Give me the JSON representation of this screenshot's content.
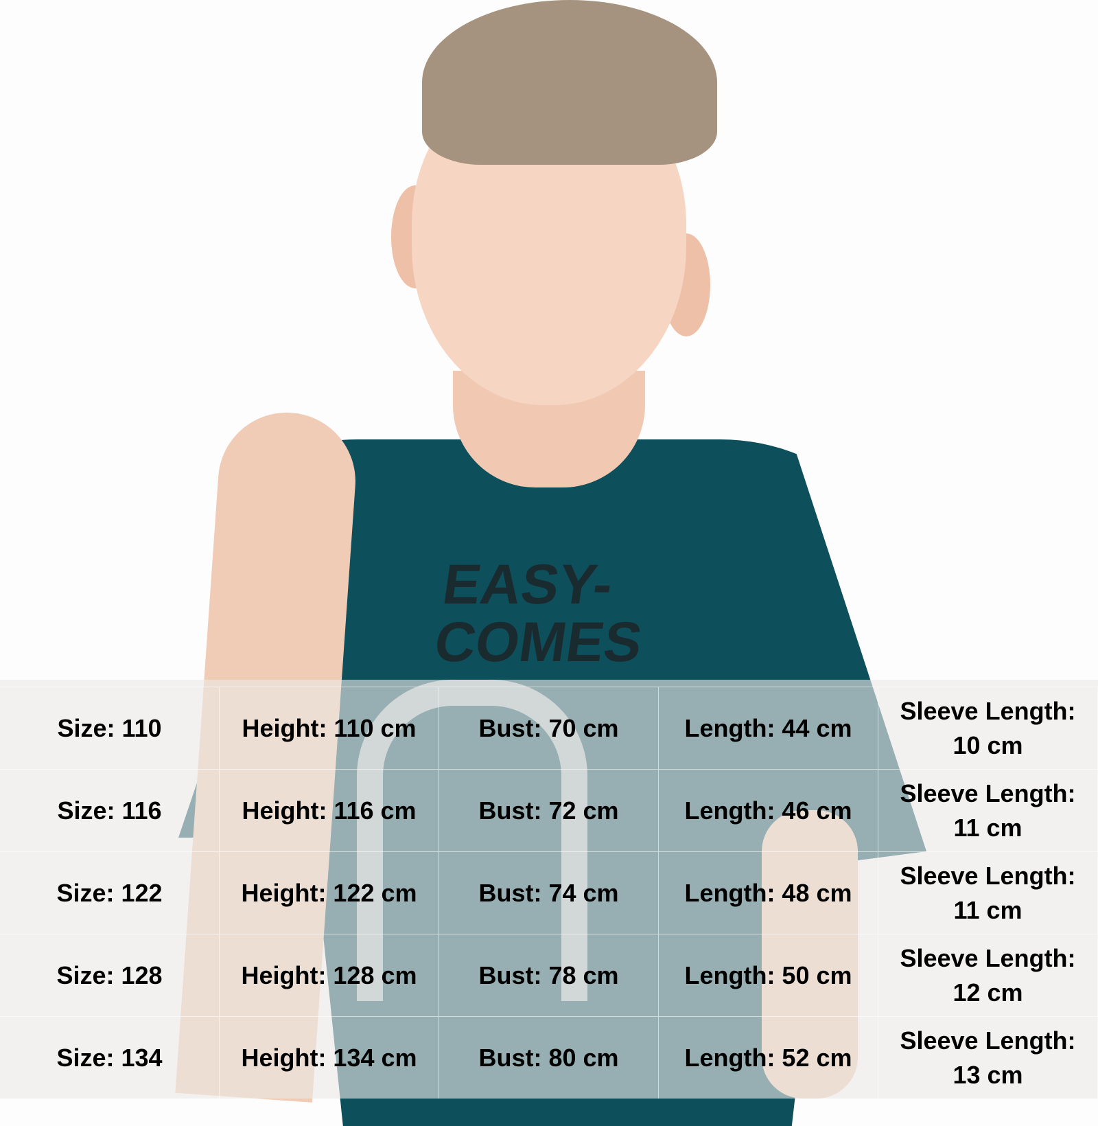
{
  "photo": {
    "shirt_print": [
      "EASY-",
      "COMES"
    ],
    "shirt_color": "#0e4f5c"
  },
  "size_table": {
    "rows": [
      [
        "Size: 110",
        "Height: 110 cm",
        "Bust: 70 cm",
        "Length: 44 cm",
        "Sleeve Length: 10 cm"
      ],
      [
        "Size: 116",
        "Height: 116 cm",
        "Bust: 72 cm",
        "Length: 46 cm",
        "Sleeve Length: 11 cm"
      ],
      [
        "Size: 122",
        "Height: 122 cm",
        "Bust: 74 cm",
        "Length: 48 cm",
        "Sleeve Length: 11 cm"
      ],
      [
        "Size: 128",
        "Height: 128 cm",
        "Bust: 78 cm",
        "Length: 50 cm",
        "Sleeve Length: 12 cm"
      ],
      [
        "Size: 134",
        "Height: 134 cm",
        "Bust: 80 cm",
        "Length: 52 cm",
        "Sleeve Length: 13 cm"
      ]
    ]
  }
}
